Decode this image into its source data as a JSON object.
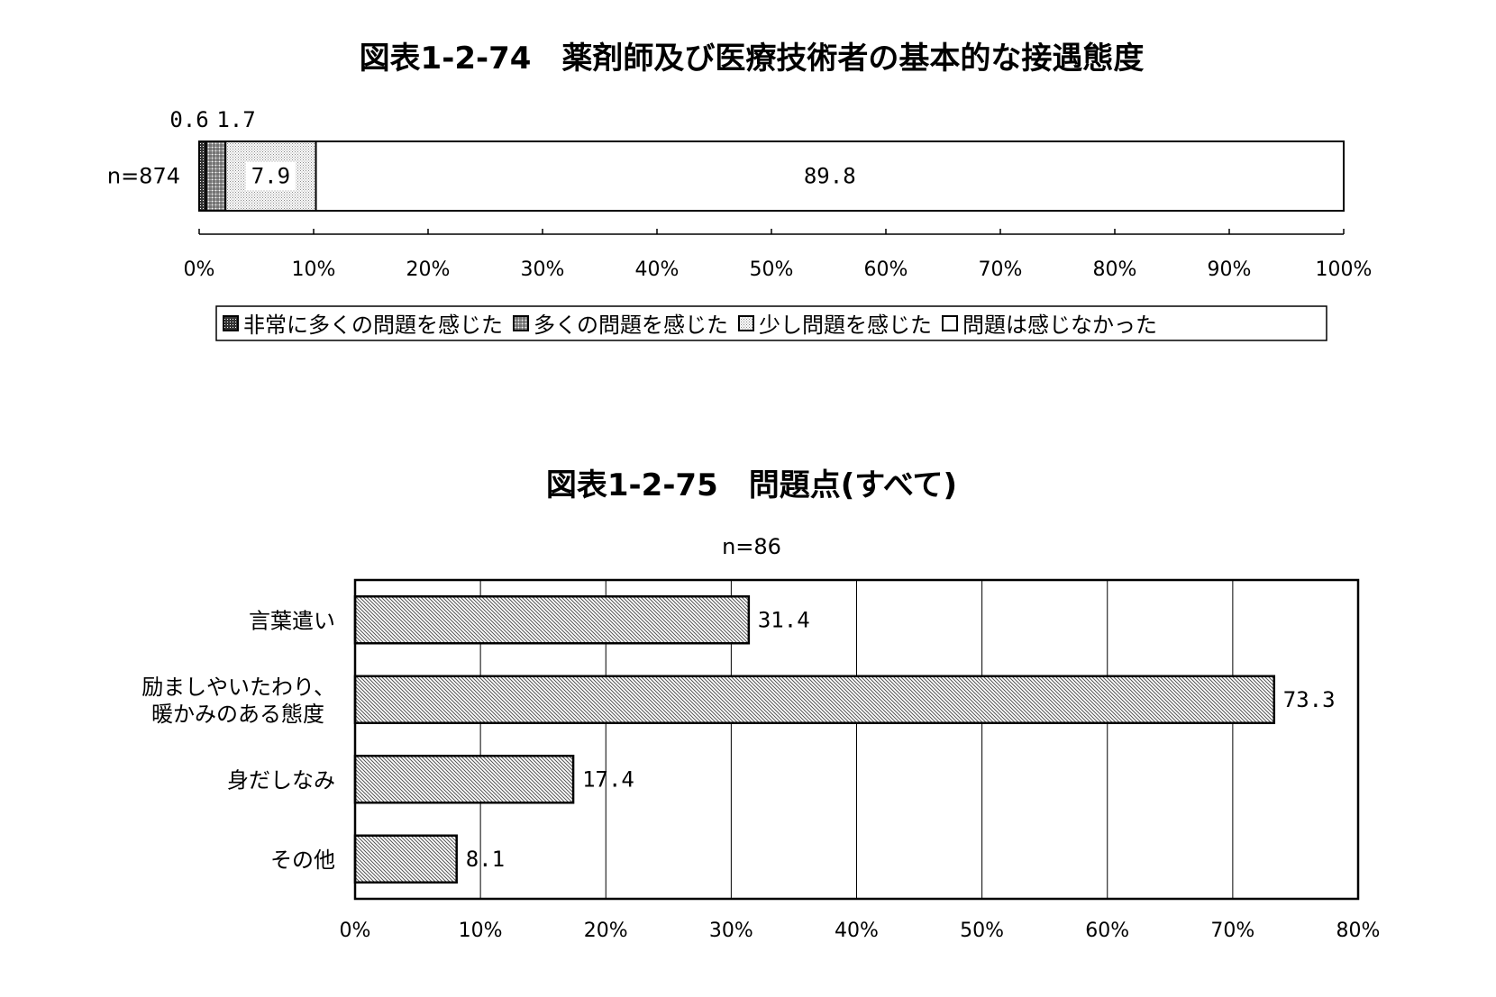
{
  "chart_data": [
    {
      "type": "bar",
      "title": "図表1-2-74　薬剤師及び医療技術者の基本的な接遇態度",
      "categories": [
        "n=874"
      ],
      "series": [
        {
          "name": "非常に多くの問題を感じた",
          "values": [
            0.6
          ],
          "label": "0.6"
        },
        {
          "name": "多くの問題を感じた",
          "values": [
            1.7
          ],
          "label": "1.7"
        },
        {
          "name": "少し問題を感じた",
          "values": [
            7.9
          ],
          "label": "7.9"
        },
        {
          "name": "問題は感じなかった",
          "values": [
            89.8
          ],
          "label": "89.8"
        }
      ],
      "xlim": [
        0,
        100
      ],
      "xticks": [
        "0%",
        "10%",
        "20%",
        "30%",
        "40%",
        "50%",
        "60%",
        "70%",
        "80%",
        "90%",
        "100%"
      ],
      "stacked": true,
      "legend": "bottom"
    },
    {
      "type": "bar",
      "title": "図表1-2-75　問題点(すべて)",
      "subtitle": "n=86",
      "categories": [
        {
          "line1": "言葉遣い",
          "line2": ""
        },
        {
          "line1": "励ましやいたわり、",
          "line2": "暖かみのある態度"
        },
        {
          "line1": "身だしなみ",
          "line2": ""
        },
        {
          "line1": "その他",
          "line2": ""
        }
      ],
      "values": [
        31.4,
        73.3,
        17.4,
        8.1
      ],
      "value_labels": [
        "31.4",
        "73.3",
        "17.4",
        "8.1"
      ],
      "xlim": [
        0,
        80
      ],
      "xticks": [
        "0%",
        "10%",
        "20%",
        "30%",
        "40%",
        "50%",
        "60%",
        "70%",
        "80%"
      ],
      "grid": true
    }
  ]
}
